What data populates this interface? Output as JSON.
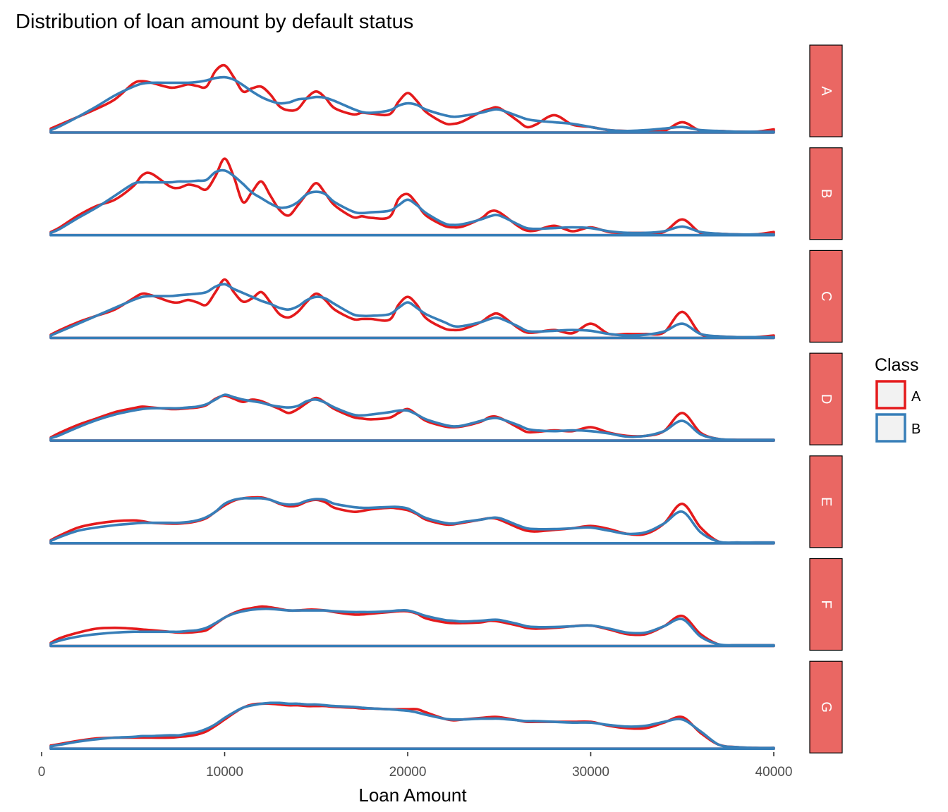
{
  "chart_data": {
    "type": "line",
    "subtype": "density",
    "title": "Distribution of loan amount by default status",
    "xlabel": "Loan Amount",
    "ylabel": "",
    "xlim": [
      0,
      40000
    ],
    "x_ticks": [
      0,
      10000,
      20000,
      30000,
      40000
    ],
    "x_tick_labels": [
      "0",
      "10000",
      "20000",
      "30000",
      "40000"
    ],
    "y_axis_shown": false,
    "grid": false,
    "legend": {
      "title": "Class",
      "placement": "right",
      "entries": [
        {
          "label": "A",
          "color": "#e41a1c"
        },
        {
          "label": "B",
          "color": "#377eb8"
        }
      ]
    },
    "facet_strip_color": "#ea6763",
    "x": [
      500,
      1000,
      2000,
      3000,
      4000,
      5000,
      5500,
      6000,
      7000,
      7500,
      8000,
      8500,
      9000,
      9500,
      10000,
      10500,
      11000,
      11500,
      12000,
      12500,
      13000,
      13500,
      14000,
      14500,
      15000,
      15500,
      16000,
      17000,
      17500,
      18000,
      19000,
      19500,
      20000,
      20500,
      21000,
      22000,
      22500,
      23000,
      24000,
      24500,
      25000,
      26000,
      26500,
      27000,
      28000,
      29000,
      30000,
      31000,
      32000,
      33000,
      34000,
      35000,
      36000,
      37000,
      38000,
      39000,
      40000
    ],
    "facets": [
      {
        "label": "A",
        "series": [
          {
            "name": "A",
            "values": [
              0.05,
              0.1,
              0.2,
              0.3,
              0.42,
              0.62,
              0.65,
              0.63,
              0.57,
              0.58,
              0.61,
              0.59,
              0.58,
              0.78,
              0.85,
              0.7,
              0.52,
              0.56,
              0.58,
              0.48,
              0.33,
              0.28,
              0.3,
              0.44,
              0.52,
              0.44,
              0.31,
              0.23,
              0.25,
              0.24,
              0.23,
              0.39,
              0.5,
              0.4,
              0.26,
              0.12,
              0.11,
              0.14,
              0.26,
              0.3,
              0.31,
              0.15,
              0.07,
              0.1,
              0.22,
              0.1,
              0.07,
              0.03,
              0.02,
              0.02,
              0.02,
              0.13,
              0.02,
              0.02,
              0.01,
              0.01,
              0.04
            ]
          },
          {
            "name": "B",
            "values": [
              0.03,
              0.08,
              0.2,
              0.33,
              0.47,
              0.58,
              0.62,
              0.63,
              0.63,
              0.63,
              0.63,
              0.64,
              0.66,
              0.69,
              0.7,
              0.67,
              0.6,
              0.52,
              0.45,
              0.4,
              0.37,
              0.38,
              0.42,
              0.43,
              0.45,
              0.44,
              0.4,
              0.3,
              0.26,
              0.25,
              0.28,
              0.34,
              0.37,
              0.35,
              0.29,
              0.22,
              0.2,
              0.21,
              0.25,
              0.28,
              0.29,
              0.21,
              0.17,
              0.15,
              0.13,
              0.11,
              0.07,
              0.03,
              0.02,
              0.03,
              0.05,
              0.07,
              0.03,
              0.02,
              0.01,
              0.01,
              0.01
            ]
          }
        ]
      },
      {
        "label": "B",
        "series": [
          {
            "name": "A",
            "values": [
              0.04,
              0.1,
              0.25,
              0.37,
              0.45,
              0.62,
              0.76,
              0.78,
              0.62,
              0.6,
              0.64,
              0.62,
              0.58,
              0.75,
              0.97,
              0.74,
              0.42,
              0.55,
              0.68,
              0.5,
              0.32,
              0.25,
              0.38,
              0.53,
              0.66,
              0.53,
              0.38,
              0.23,
              0.24,
              0.22,
              0.23,
              0.46,
              0.52,
              0.4,
              0.25,
              0.12,
              0.1,
              0.11,
              0.21,
              0.3,
              0.29,
              0.12,
              0.06,
              0.06,
              0.12,
              0.05,
              0.1,
              0.04,
              0.03,
              0.03,
              0.04,
              0.2,
              0.03,
              0.02,
              0.01,
              0.01,
              0.04
            ]
          },
          {
            "name": "B",
            "values": [
              0.03,
              0.08,
              0.22,
              0.35,
              0.5,
              0.65,
              0.67,
              0.67,
              0.67,
              0.68,
              0.68,
              0.69,
              0.7,
              0.8,
              0.82,
              0.75,
              0.65,
              0.54,
              0.47,
              0.4,
              0.35,
              0.36,
              0.42,
              0.52,
              0.55,
              0.52,
              0.42,
              0.3,
              0.28,
              0.29,
              0.31,
              0.38,
              0.45,
              0.38,
              0.28,
              0.15,
              0.13,
              0.14,
              0.2,
              0.24,
              0.25,
              0.14,
              0.09,
              0.08,
              0.09,
              0.1,
              0.09,
              0.05,
              0.03,
              0.03,
              0.05,
              0.11,
              0.04,
              0.02,
              0.01,
              0.01,
              0.01
            ]
          }
        ]
      },
      {
        "label": "C",
        "series": [
          {
            "name": "A",
            "values": [
              0.04,
              0.1,
              0.2,
              0.28,
              0.36,
              0.5,
              0.56,
              0.54,
              0.46,
              0.45,
              0.48,
              0.45,
              0.42,
              0.58,
              0.74,
              0.58,
              0.46,
              0.5,
              0.58,
              0.45,
              0.3,
              0.26,
              0.33,
              0.46,
              0.56,
              0.48,
              0.36,
              0.24,
              0.24,
              0.24,
              0.23,
              0.42,
              0.52,
              0.42,
              0.25,
              0.12,
              0.1,
              0.11,
              0.2,
              0.28,
              0.3,
              0.13,
              0.07,
              0.07,
              0.1,
              0.06,
              0.18,
              0.05,
              0.05,
              0.05,
              0.07,
              0.33,
              0.05,
              0.02,
              0.01,
              0.01,
              0.03
            ]
          },
          {
            "name": "B",
            "values": [
              0.03,
              0.08,
              0.18,
              0.28,
              0.38,
              0.48,
              0.52,
              0.53,
              0.53,
              0.54,
              0.55,
              0.56,
              0.58,
              0.65,
              0.68,
              0.62,
              0.57,
              0.52,
              0.47,
              0.43,
              0.38,
              0.36,
              0.4,
              0.48,
              0.52,
              0.5,
              0.43,
              0.3,
              0.28,
              0.28,
              0.3,
              0.38,
              0.45,
              0.38,
              0.3,
              0.2,
              0.15,
              0.15,
              0.2,
              0.24,
              0.25,
              0.15,
              0.09,
              0.08,
              0.09,
              0.1,
              0.09,
              0.05,
              0.03,
              0.04,
              0.08,
              0.18,
              0.05,
              0.02,
              0.01,
              0.01,
              0.01
            ]
          }
        ]
      },
      {
        "label": "D",
        "series": [
          {
            "name": "A",
            "values": [
              0.04,
              0.1,
              0.2,
              0.28,
              0.36,
              0.41,
              0.43,
              0.42,
              0.4,
              0.4,
              0.41,
              0.42,
              0.45,
              0.53,
              0.57,
              0.53,
              0.49,
              0.52,
              0.5,
              0.45,
              0.4,
              0.35,
              0.4,
              0.48,
              0.54,
              0.48,
              0.4,
              0.3,
              0.28,
              0.27,
              0.29,
              0.35,
              0.4,
              0.33,
              0.25,
              0.18,
              0.17,
              0.18,
              0.24,
              0.3,
              0.29,
              0.17,
              0.11,
              0.11,
              0.13,
              0.12,
              0.17,
              0.1,
              0.06,
              0.06,
              0.12,
              0.35,
              0.1,
              0.02,
              0.01,
              0.01,
              0.01
            ]
          },
          {
            "name": "B",
            "values": [
              0.03,
              0.07,
              0.17,
              0.26,
              0.33,
              0.38,
              0.4,
              0.41,
              0.41,
              0.41,
              0.42,
              0.43,
              0.46,
              0.52,
              0.58,
              0.55,
              0.52,
              0.5,
              0.48,
              0.45,
              0.43,
              0.42,
              0.44,
              0.5,
              0.52,
              0.48,
              0.42,
              0.33,
              0.32,
              0.33,
              0.36,
              0.38,
              0.38,
              0.33,
              0.27,
              0.2,
              0.18,
              0.19,
              0.25,
              0.28,
              0.28,
              0.2,
              0.15,
              0.13,
              0.12,
              0.13,
              0.12,
              0.09,
              0.05,
              0.06,
              0.12,
              0.25,
              0.08,
              0.02,
              0.01,
              0.01,
              0.01
            ]
          }
        ]
      },
      {
        "label": "E",
        "series": [
          {
            "name": "A",
            "values": [
              0.04,
              0.1,
              0.2,
              0.25,
              0.28,
              0.29,
              0.28,
              0.26,
              0.25,
              0.25,
              0.26,
              0.28,
              0.32,
              0.4,
              0.48,
              0.54,
              0.57,
              0.58,
              0.58,
              0.55,
              0.5,
              0.47,
              0.48,
              0.53,
              0.55,
              0.52,
              0.45,
              0.4,
              0.41,
              0.43,
              0.45,
              0.44,
              0.42,
              0.37,
              0.3,
              0.24,
              0.24,
              0.26,
              0.3,
              0.32,
              0.3,
              0.2,
              0.16,
              0.15,
              0.17,
              0.19,
              0.22,
              0.18,
              0.12,
              0.12,
              0.25,
              0.5,
              0.2,
              0.02,
              0.01,
              0.01,
              0.01
            ]
          },
          {
            "name": "B",
            "values": [
              0.03,
              0.08,
              0.16,
              0.2,
              0.23,
              0.25,
              0.26,
              0.26,
              0.26,
              0.26,
              0.27,
              0.29,
              0.33,
              0.4,
              0.5,
              0.55,
              0.57,
              0.57,
              0.57,
              0.55,
              0.51,
              0.49,
              0.5,
              0.54,
              0.56,
              0.55,
              0.5,
              0.46,
              0.45,
              0.45,
              0.46,
              0.46,
              0.44,
              0.38,
              0.32,
              0.26,
              0.25,
              0.27,
              0.3,
              0.32,
              0.32,
              0.23,
              0.19,
              0.18,
              0.18,
              0.19,
              0.2,
              0.16,
              0.12,
              0.14,
              0.25,
              0.4,
              0.14,
              0.02,
              0.01,
              0.01,
              0.01
            ]
          }
        ]
      },
      {
        "label": "F",
        "series": [
          {
            "name": "A",
            "values": [
              0.04,
              0.1,
              0.17,
              0.22,
              0.23,
              0.22,
              0.21,
              0.2,
              0.18,
              0.17,
              0.17,
              0.18,
              0.2,
              0.28,
              0.36,
              0.42,
              0.46,
              0.48,
              0.5,
              0.49,
              0.47,
              0.45,
              0.45,
              0.46,
              0.46,
              0.45,
              0.43,
              0.4,
              0.4,
              0.41,
              0.43,
              0.44,
              0.44,
              0.41,
              0.35,
              0.3,
              0.29,
              0.29,
              0.3,
              0.32,
              0.31,
              0.26,
              0.23,
              0.22,
              0.23,
              0.25,
              0.26,
              0.21,
              0.15,
              0.15,
              0.25,
              0.38,
              0.15,
              0.02,
              0.01,
              0.01,
              0.01
            ]
          },
          {
            "name": "B",
            "values": [
              0.03,
              0.07,
              0.12,
              0.15,
              0.17,
              0.18,
              0.18,
              0.18,
              0.18,
              0.18,
              0.19,
              0.2,
              0.23,
              0.29,
              0.36,
              0.41,
              0.44,
              0.46,
              0.47,
              0.47,
              0.46,
              0.45,
              0.45,
              0.45,
              0.45,
              0.45,
              0.44,
              0.43,
              0.43,
              0.43,
              0.44,
              0.45,
              0.45,
              0.42,
              0.38,
              0.33,
              0.32,
              0.31,
              0.32,
              0.33,
              0.33,
              0.28,
              0.25,
              0.24,
              0.24,
              0.25,
              0.26,
              0.22,
              0.17,
              0.17,
              0.25,
              0.34,
              0.12,
              0.02,
              0.01,
              0.01,
              0.01
            ]
          }
        ]
      },
      {
        "label": "G",
        "series": [
          {
            "name": "A",
            "values": [
              0.04,
              0.06,
              0.1,
              0.13,
              0.14,
              0.14,
              0.14,
              0.14,
              0.14,
              0.15,
              0.16,
              0.18,
              0.22,
              0.29,
              0.37,
              0.45,
              0.52,
              0.56,
              0.57,
              0.57,
              0.56,
              0.55,
              0.55,
              0.54,
              0.54,
              0.54,
              0.53,
              0.52,
              0.51,
              0.51,
              0.5,
              0.5,
              0.5,
              0.5,
              0.46,
              0.38,
              0.36,
              0.37,
              0.39,
              0.4,
              0.4,
              0.36,
              0.34,
              0.34,
              0.34,
              0.34,
              0.34,
              0.29,
              0.26,
              0.26,
              0.33,
              0.4,
              0.2,
              0.05,
              0.02,
              0.01,
              0.01
            ]
          },
          {
            "name": "B",
            "values": [
              0.03,
              0.05,
              0.09,
              0.12,
              0.14,
              0.15,
              0.16,
              0.16,
              0.17,
              0.17,
              0.19,
              0.21,
              0.25,
              0.31,
              0.39,
              0.46,
              0.52,
              0.55,
              0.57,
              0.58,
              0.58,
              0.57,
              0.57,
              0.56,
              0.56,
              0.55,
              0.54,
              0.53,
              0.52,
              0.51,
              0.5,
              0.49,
              0.48,
              0.46,
              0.43,
              0.38,
              0.37,
              0.37,
              0.38,
              0.38,
              0.38,
              0.36,
              0.35,
              0.35,
              0.34,
              0.33,
              0.33,
              0.3,
              0.28,
              0.29,
              0.34,
              0.37,
              0.22,
              0.05,
              0.02,
              0.01,
              0.01
            ]
          }
        ]
      }
    ]
  }
}
